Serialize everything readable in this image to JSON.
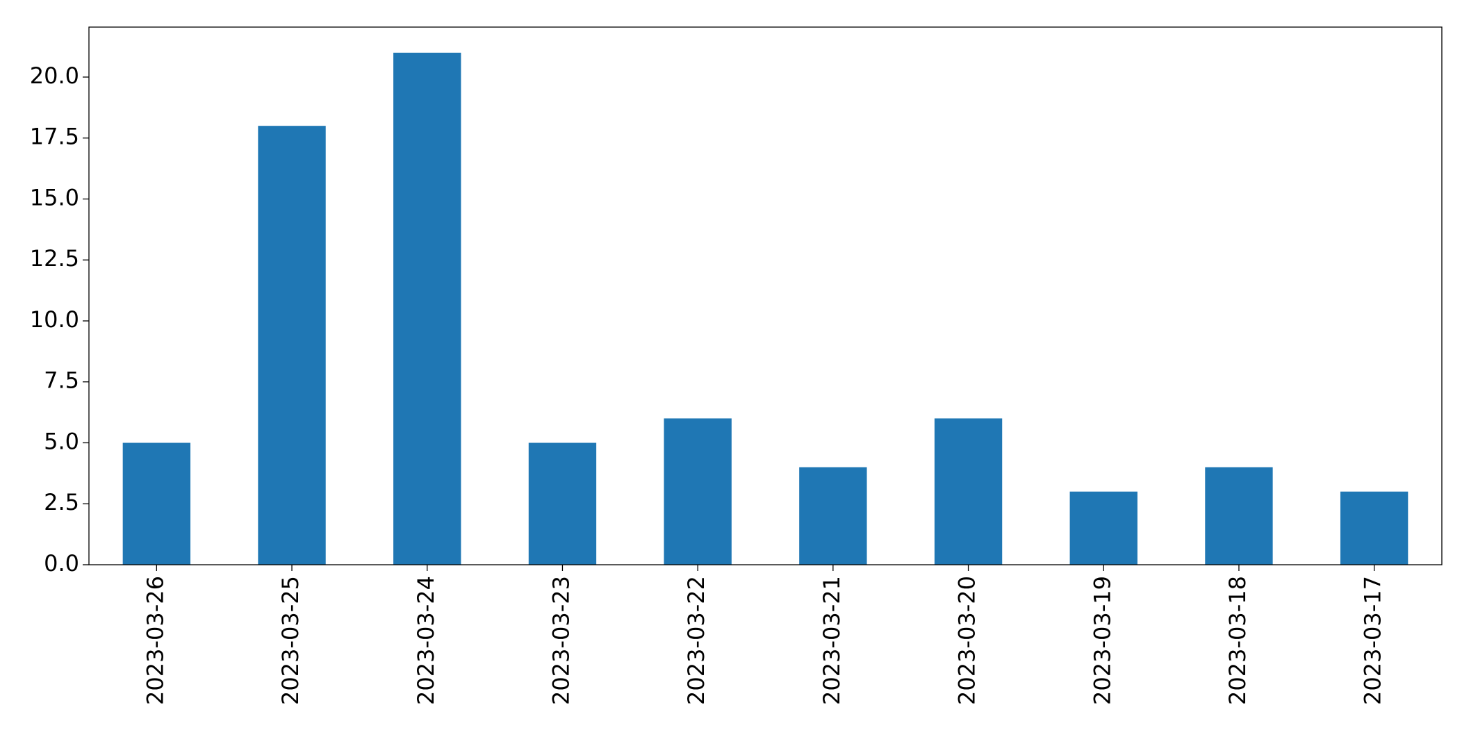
{
  "chart_data": {
    "type": "bar",
    "categories": [
      "2023-03-26",
      "2023-03-25",
      "2023-03-24",
      "2023-03-23",
      "2023-03-22",
      "2023-03-21",
      "2023-03-20",
      "2023-03-19",
      "2023-03-18",
      "2023-03-17"
    ],
    "values": [
      5,
      18,
      21,
      5,
      6,
      4,
      6,
      3,
      4,
      3
    ],
    "color": "#1f77b4",
    "ylim": [
      0,
      22.05
    ],
    "yticks": [
      {
        "value": 0,
        "label": "0.0"
      },
      {
        "value": 2.5,
        "label": "2.5"
      },
      {
        "value": 5,
        "label": "5.0"
      },
      {
        "value": 7.5,
        "label": "7.5"
      },
      {
        "value": 10,
        "label": "10.0"
      },
      {
        "value": 12.5,
        "label": "12.5"
      },
      {
        "value": 15,
        "label": "15.0"
      },
      {
        "value": 17.5,
        "label": "17.5"
      },
      {
        "value": 20,
        "label": "20.0"
      }
    ],
    "grid": false
  }
}
